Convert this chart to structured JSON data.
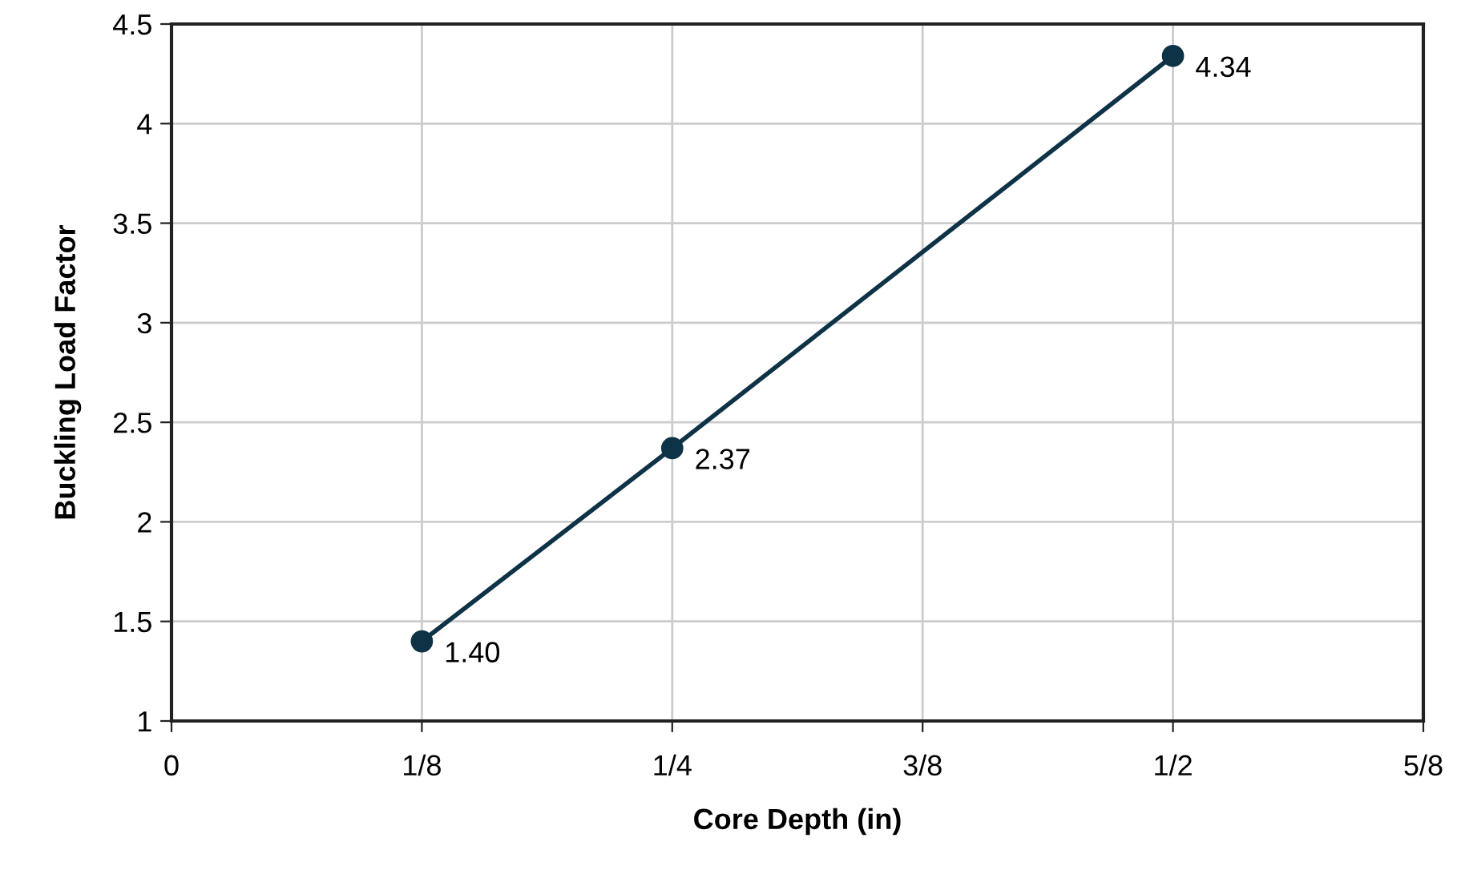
{
  "chart_data": {
    "type": "line",
    "xlabel": "Core Depth (in)",
    "ylabel": "Buckling Load Factor",
    "x": [
      0.125,
      0.25,
      0.5
    ],
    "series": [
      {
        "color": "#0e3347",
        "values": [
          1.4,
          2.37,
          4.34
        ],
        "value_labels": [
          "1.40",
          "2.37",
          "4.34"
        ]
      }
    ],
    "xlim": [
      0,
      0.625
    ],
    "xticks": [
      0,
      {
        "value": 0.125,
        "label": "1/8"
      },
      {
        "value": 0.25,
        "label": "1/4"
      },
      {
        "value": 0.375,
        "label": "3/8"
      },
      {
        "value": 0.5,
        "label": "1/2"
      },
      {
        "value": 0.625,
        "label": "5/8"
      }
    ],
    "ylim": [
      1,
      4.5
    ],
    "yticks": [
      1,
      1.5,
      2,
      2.5,
      3,
      3.5,
      4,
      4.5
    ],
    "grid": true,
    "marker": "circle",
    "line_style": "solid"
  }
}
